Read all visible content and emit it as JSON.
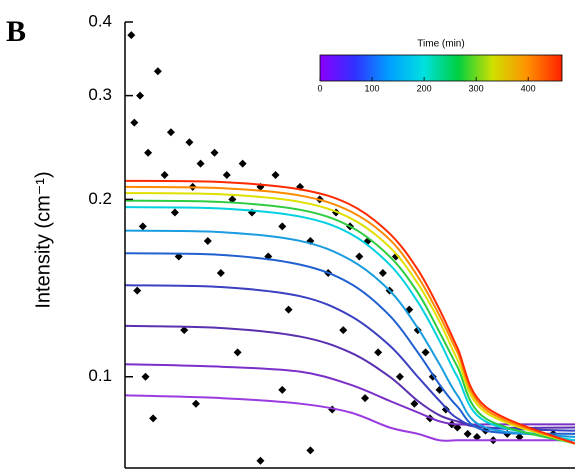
{
  "chart_data": {
    "type": "scatter-fit",
    "panel_label": "B",
    "y_label": "Intensity (cm⁻¹)",
    "xlim": [
      0.003,
      0.3
    ],
    "xscale": "log",
    "ylim": [
      0.07,
      0.4
    ],
    "yscale": "log",
    "yticks": [
      0.1,
      0.2,
      0.3,
      0.4
    ],
    "points": {
      "color": "#000000",
      "x": [
        0.0032,
        0.0035,
        0.0033,
        0.0038,
        0.0036,
        0.0034,
        0.0037,
        0.004,
        0.0042,
        0.0045,
        0.0048,
        0.005,
        0.0052,
        0.0055,
        0.0058,
        0.006,
        0.0065,
        0.007,
        0.0075,
        0.008,
        0.0085,
        0.009,
        0.0095,
        0.01,
        0.011,
        0.012,
        0.013,
        0.014,
        0.015,
        0.016,
        0.018,
        0.02,
        0.022,
        0.024,
        0.026,
        0.028,
        0.03,
        0.033,
        0.036,
        0.04,
        0.042,
        0.045,
        0.048,
        0.05,
        0.055,
        0.058,
        0.06,
        0.065,
        0.068,
        0.07,
        0.075,
        0.08,
        0.085,
        0.09,
        0.1,
        0.11,
        0.12,
        0.13,
        0.15,
        0.17,
        0.2,
        0.24,
        0.0062,
        0.015,
        0.025,
        0.035,
        0.012,
        0.02
      ],
      "y": [
        0.38,
        0.3,
        0.27,
        0.24,
        0.18,
        0.14,
        0.1,
        0.085,
        0.33,
        0.22,
        0.26,
        0.19,
        0.16,
        0.12,
        0.25,
        0.21,
        0.23,
        0.17,
        0.24,
        0.15,
        0.22,
        0.2,
        0.11,
        0.23,
        0.19,
        0.21,
        0.16,
        0.22,
        0.18,
        0.13,
        0.21,
        0.17,
        0.2,
        0.15,
        0.19,
        0.12,
        0.18,
        0.16,
        0.17,
        0.11,
        0.15,
        0.14,
        0.16,
        0.1,
        0.13,
        0.09,
        0.12,
        0.11,
        0.085,
        0.1,
        0.095,
        0.088,
        0.083,
        0.082,
        0.08,
        0.079,
        0.081,
        0.078,
        0.08,
        0.079,
        0.081,
        0.08,
        0.09,
        0.095,
        0.088,
        0.092,
        0.072,
        0.075
      ]
    },
    "fit_x": [
      0.003,
      0.008,
      0.018,
      0.03,
      0.045,
      0.06,
      0.075,
      0.09,
      0.12,
      0.3
    ],
    "series": [
      {
        "color": "#9a3ae0",
        "values": [
          0.093,
          0.092,
          0.09,
          0.087,
          0.082,
          0.08,
          0.078,
          0.078,
          0.078,
          0.078
        ]
      },
      {
        "color": "#7a30c8",
        "values": [
          0.105,
          0.104,
          0.102,
          0.097,
          0.091,
          0.087,
          0.084,
          0.083,
          0.083,
          0.083
        ]
      },
      {
        "color": "#5a30b0",
        "values": [
          0.122,
          0.121,
          0.117,
          0.11,
          0.1,
          0.091,
          0.086,
          0.084,
          0.082,
          0.082
        ]
      },
      {
        "color": "#3a40c0",
        "values": [
          0.143,
          0.142,
          0.137,
          0.127,
          0.113,
          0.1,
          0.091,
          0.085,
          0.082,
          0.081
        ]
      },
      {
        "color": "#2060d0",
        "values": [
          0.162,
          0.161,
          0.155,
          0.144,
          0.127,
          0.11,
          0.097,
          0.089,
          0.081,
          0.08
        ]
      },
      {
        "color": "#1a9ce0",
        "values": [
          0.177,
          0.176,
          0.17,
          0.158,
          0.14,
          0.121,
          0.105,
          0.093,
          0.082,
          0.079
        ]
      },
      {
        "color": "#00d0e0",
        "values": [
          0.194,
          0.193,
          0.187,
          0.175,
          0.155,
          0.134,
          0.115,
          0.1,
          0.084,
          0.078
        ]
      },
      {
        "color": "#2ecc40",
        "values": [
          0.199,
          0.198,
          0.192,
          0.18,
          0.16,
          0.139,
          0.119,
          0.104,
          0.085,
          0.077
        ]
      },
      {
        "color": "#e0e000",
        "values": [
          0.205,
          0.204,
          0.198,
          0.186,
          0.166,
          0.144,
          0.124,
          0.107,
          0.087,
          0.077
        ]
      },
      {
        "color": "#ff8a00",
        "values": [
          0.21,
          0.209,
          0.203,
          0.191,
          0.171,
          0.148,
          0.127,
          0.11,
          0.088,
          0.077
        ]
      },
      {
        "color": "#ff2a00",
        "values": [
          0.215,
          0.214,
          0.208,
          0.196,
          0.175,
          0.152,
          0.13,
          0.112,
          0.089,
          0.077
        ]
      }
    ],
    "colorbar": {
      "title": "Time (min)",
      "lim": [
        0,
        465
      ],
      "ticks": [
        0,
        100,
        200,
        300,
        400
      ],
      "colors": [
        "#8a00ff",
        "#3030ff",
        "#00a0ff",
        "#00e0e0",
        "#00d040",
        "#d0e000",
        "#ff9000",
        "#ff2000"
      ]
    }
  }
}
